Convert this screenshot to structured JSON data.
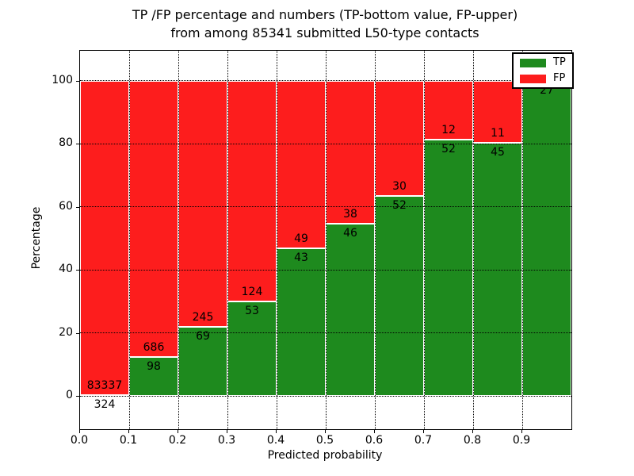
{
  "title": {
    "line1": "TP /FP percentage and numbers (TP-bottom value, FP-upper)",
    "line2": "from among 85341 submitted L50-type contacts"
  },
  "axes": {
    "xlabel": "Predicted probability",
    "ylabel": "Percentage"
  },
  "legend": {
    "position": "upper right",
    "items": [
      {
        "label": "TP",
        "color": "#1e8a1e"
      },
      {
        "label": "FP",
        "color": "#fd1d1d"
      }
    ]
  },
  "chart_data": {
    "type": "bar",
    "subtype": "stacked-percentage",
    "title": "TP /FP percentage and numbers (TP-bottom value, FP-upper) from among 85341 submitted L50-type contacts",
    "xlabel": "Predicted probability",
    "ylabel": "Percentage",
    "xlim": [
      0.0,
      1.0
    ],
    "ylim": [
      -10.5,
      109.5
    ],
    "x_tick_values": [
      0.0,
      0.1,
      0.2,
      0.3,
      0.4,
      0.5,
      0.6,
      0.7,
      0.8,
      0.9
    ],
    "x_tick_labels": [
      "0.0",
      "0.1",
      "0.2",
      "0.3",
      "0.4",
      "0.5",
      "0.6",
      "0.7",
      "0.8",
      "0.9"
    ],
    "y_tick_values": [
      0,
      20,
      40,
      60,
      80,
      100
    ],
    "grid": "dotted black, both axes",
    "legend_position": "upper right",
    "total_contacts": 85341,
    "series": [
      {
        "name": "TP",
        "color": "#1e8a1e"
      },
      {
        "name": "FP",
        "color": "#fd1d1d"
      }
    ],
    "bins": [
      {
        "range": [
          0.0,
          0.1
        ],
        "tp": 324,
        "fp": 83337,
        "fp_label_visible": true
      },
      {
        "range": [
          0.1,
          0.2
        ],
        "tp": 98,
        "fp": 686,
        "fp_label_visible": true
      },
      {
        "range": [
          0.2,
          0.3
        ],
        "tp": 69,
        "fp": 245,
        "fp_label_visible": true
      },
      {
        "range": [
          0.3,
          0.4
        ],
        "tp": 53,
        "fp": 124,
        "fp_label_visible": true
      },
      {
        "range": [
          0.4,
          0.5
        ],
        "tp": 43,
        "fp": 49,
        "fp_label_visible": true
      },
      {
        "range": [
          0.5,
          0.6
        ],
        "tp": 46,
        "fp": 38,
        "fp_label_visible": true
      },
      {
        "range": [
          0.6,
          0.7
        ],
        "tp": 52,
        "fp": 30,
        "fp_label_visible": true
      },
      {
        "range": [
          0.7,
          0.8
        ],
        "tp": 52,
        "fp": 12,
        "fp_label_visible": true
      },
      {
        "range": [
          0.8,
          0.9
        ],
        "tp": 45,
        "fp": 11,
        "fp_label_visible": true
      },
      {
        "range": [
          0.9,
          1.0
        ],
        "tp": 27,
        "fp": 0,
        "fp_label_visible": false
      }
    ]
  }
}
